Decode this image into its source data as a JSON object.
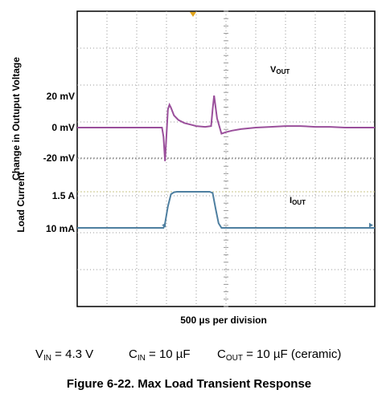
{
  "chart_data": {
    "type": "line",
    "title": "",
    "xlabel": "500 µs per division",
    "x_divisions": 10,
    "y_divisions": 8,
    "grid": true,
    "axis_labels": {
      "voltage": "Change in Outuput Voltage",
      "current": "Load Current"
    },
    "tick_labels": {
      "voltage": [
        "20 mV",
        "0 mV",
        "-20 mV"
      ],
      "current": [
        "1.5 A",
        "10 mA"
      ]
    },
    "traces": {
      "vout": {
        "label_main": "V",
        "label_sub": "OUT",
        "color": "#9a4f9b",
        "units": "mV",
        "x": [
          0,
          1.5,
          2.85,
          2.9,
          2.95,
          3.0,
          3.05,
          3.1,
          3.15,
          3.25,
          3.4,
          3.6,
          3.8,
          4.0,
          4.3,
          4.5,
          4.55,
          4.6,
          4.7,
          4.85,
          5.0,
          5.2,
          5.5,
          6.0,
          6.5,
          7.0,
          7.5,
          8.0,
          8.5,
          9.0,
          10.0
        ],
        "y": [
          0,
          0,
          0,
          -6,
          -22,
          -5,
          12,
          15,
          13,
          8,
          5,
          3,
          2,
          1,
          0.5,
          1,
          12,
          21,
          6,
          -4,
          -3,
          -2,
          -1,
          0,
          0.5,
          1,
          1,
          0.5,
          0.5,
          0,
          0
        ]
      },
      "iout": {
        "label_main": "I",
        "label_sub": "OUT",
        "color": "#4e7fa0",
        "units": "A",
        "x": [
          0,
          2.9,
          2.95,
          3.05,
          3.15,
          3.25,
          3.35,
          4.45,
          4.55,
          4.65,
          4.75,
          4.85,
          10.0
        ],
        "y": [
          0.01,
          0.01,
          0.2,
          0.9,
          1.4,
          1.48,
          1.5,
          1.5,
          1.45,
          0.8,
          0.2,
          0.01,
          0.01
        ]
      }
    }
  },
  "conditions": {
    "vin": {
      "main": "V",
      "sub": "IN",
      "rest": " = 4.3 V"
    },
    "cin": {
      "main": "C",
      "sub": "IN",
      "rest": " = 10 µF"
    },
    "cout": {
      "main": "C",
      "sub": "OUT",
      "rest": " = 10 µF (ceramic)"
    }
  },
  "caption": "Figure 6-22. Max Load Transient Response"
}
